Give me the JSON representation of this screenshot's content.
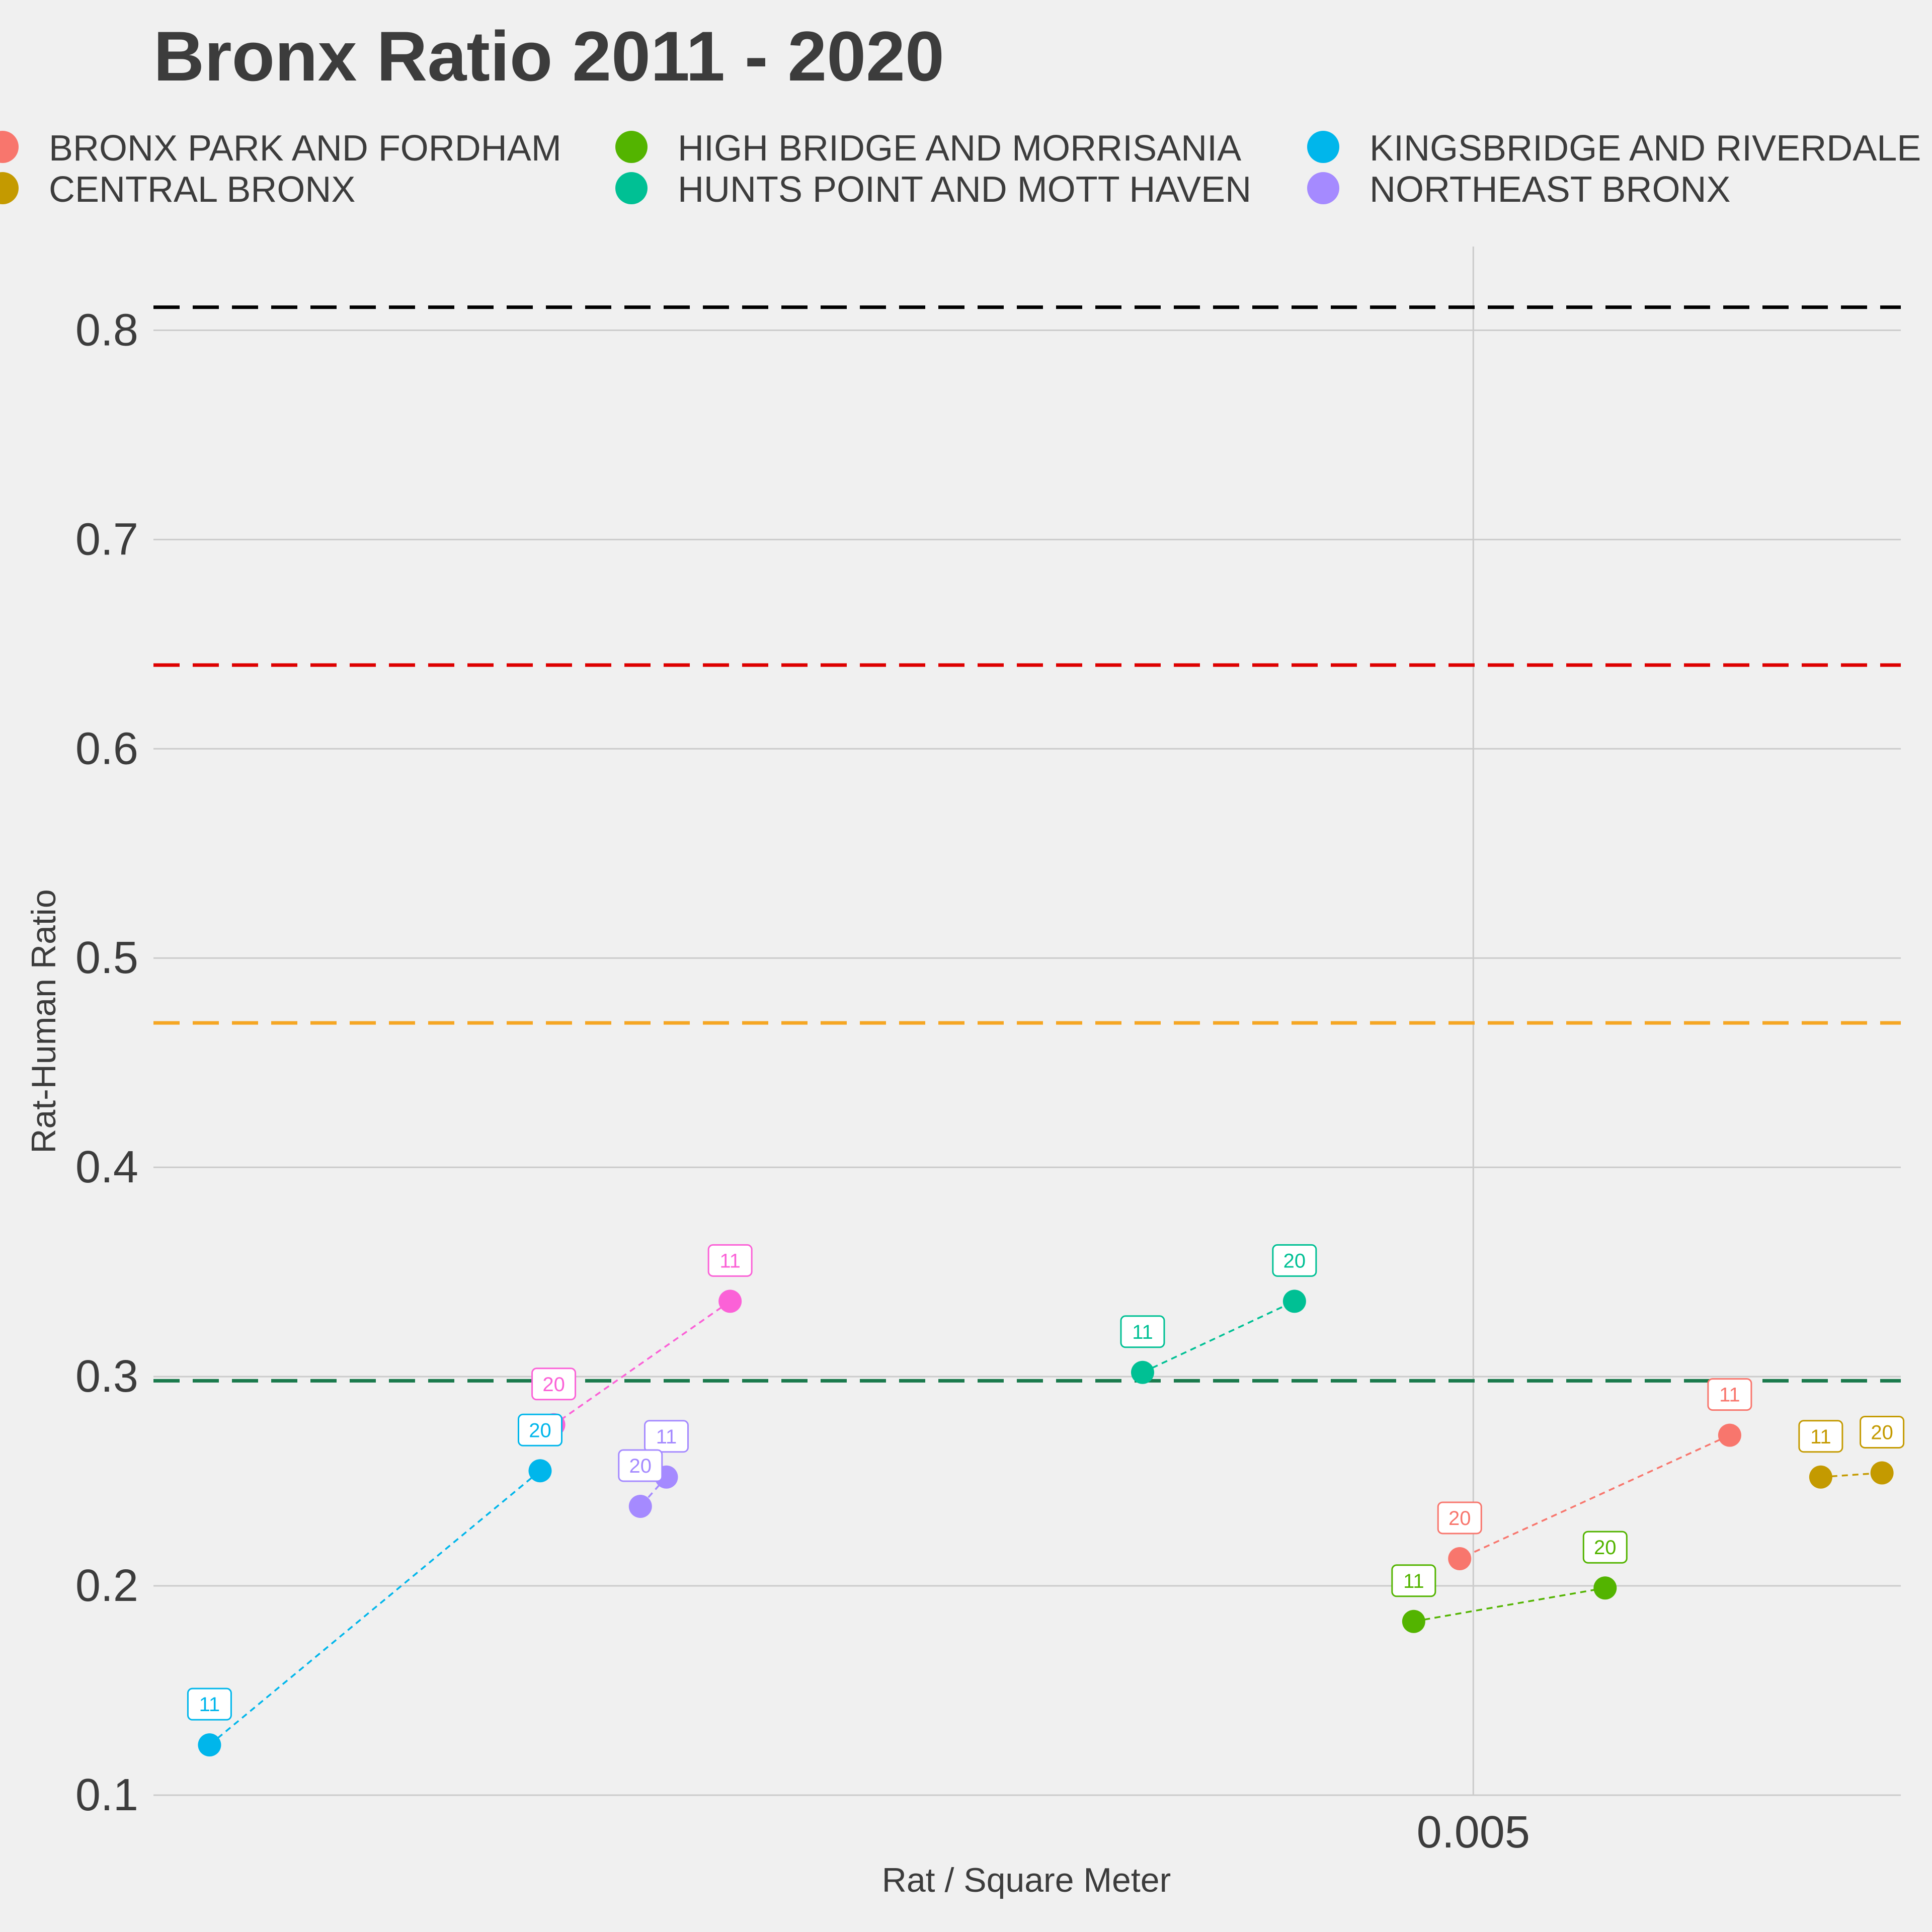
{
  "chart_data": {
    "type": "scatter",
    "title": "Bronx Ratio 2011 - 2020",
    "xlabel": "Rat / Square Meter",
    "ylabel": "Rat-Human Ratio",
    "x_scale": "log",
    "xlim": [
      0.00279,
      0.00604
    ],
    "ylim": [
      0.1,
      0.84
    ],
    "x_ticks": [
      {
        "value": 0.005,
        "label": "0.005"
      }
    ],
    "y_ticks": [
      {
        "value": 0.1,
        "label": "0.1"
      },
      {
        "value": 0.2,
        "label": "0.2"
      },
      {
        "value": 0.3,
        "label": "0.3"
      },
      {
        "value": 0.4,
        "label": "0.4"
      },
      {
        "value": 0.5,
        "label": "0.5"
      },
      {
        "value": 0.6,
        "label": "0.6"
      },
      {
        "value": 0.7,
        "label": "0.7"
      },
      {
        "value": 0.8,
        "label": "0.8"
      }
    ],
    "grid": true,
    "legend_position": "top",
    "reference_lines": [
      {
        "y": 0.811,
        "color": "#000000"
      },
      {
        "y": 0.64,
        "color": "#dd0000"
      },
      {
        "y": 0.469,
        "color": "#f5a623"
      },
      {
        "y": 0.298,
        "color": "#1a7a4c"
      }
    ],
    "series": [
      {
        "name": "BRONX PARK AND FORDHAM",
        "color": "#f8766d",
        "in_legend": true,
        "line_color": "#f8766d",
        "points": [
          {
            "label": "11",
            "x": 0.0056,
            "y": 0.272
          },
          {
            "label": "20",
            "x": 0.00497,
            "y": 0.213
          }
        ]
      },
      {
        "name": "CENTRAL BRONX",
        "color": "#c49a00",
        "in_legend": true,
        "line_color": "#c49a00",
        "points": [
          {
            "label": "11",
            "x": 0.00583,
            "y": 0.252
          },
          {
            "label": "20",
            "x": 0.00599,
            "y": 0.254
          }
        ]
      },
      {
        "name": "HIGH BRIDGE AND MORRISANIA",
        "color": "#53b400",
        "in_legend": true,
        "line_color": "#53b400",
        "points": [
          {
            "label": "11",
            "x": 0.00487,
            "y": 0.183
          },
          {
            "label": "20",
            "x": 0.0053,
            "y": 0.199
          }
        ]
      },
      {
        "name": "HUNTS POINT AND MOTT HAVEN",
        "color": "#00c094",
        "in_legend": true,
        "line_color": "#00c094",
        "points": [
          {
            "label": "11",
            "x": 0.00432,
            "y": 0.302
          },
          {
            "label": "20",
            "x": 0.00462,
            "y": 0.336
          }
        ]
      },
      {
        "name": "KINGSBRIDGE AND RIVERDALE",
        "color": "#00b6eb",
        "in_legend": true,
        "line_color": "#00b6eb",
        "points": [
          {
            "label": "11",
            "x": 0.00286,
            "y": 0.124
          },
          {
            "label": "20",
            "x": 0.00331,
            "y": 0.255
          }
        ]
      },
      {
        "name": "NORTHEAST BRONX",
        "color": "#a58aff",
        "in_legend": true,
        "line_color": "#a58aff",
        "points": [
          {
            "label": "11",
            "x": 0.0035,
            "y": 0.252
          },
          {
            "label": "20",
            "x": 0.00346,
            "y": 0.238
          }
        ]
      },
      {
        "name": "",
        "color": "#fb61d7",
        "in_legend": false,
        "line_color": "#fb61d7",
        "points": [
          {
            "label": "11",
            "x": 0.0036,
            "y": 0.336
          },
          {
            "label": "20",
            "x": 0.00333,
            "y": 0.277
          }
        ]
      }
    ]
  }
}
